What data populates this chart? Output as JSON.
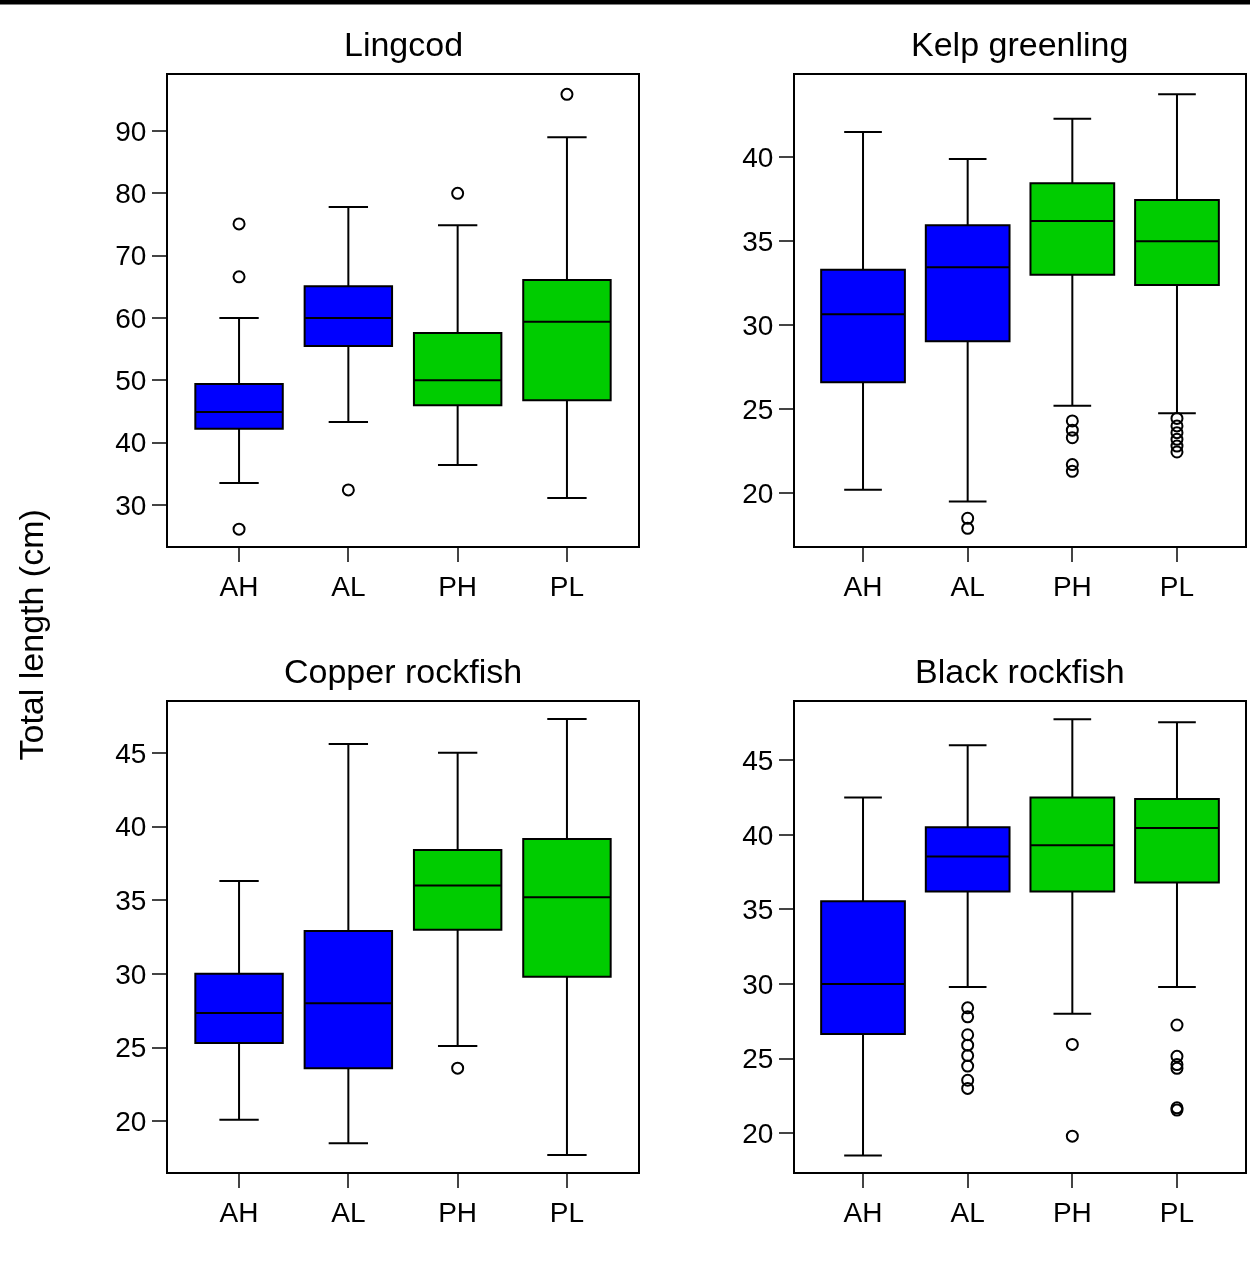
{
  "chart_data": [
    {
      "type": "box",
      "title": "Lingcod",
      "ylabel": "Total length (cm)",
      "categories": [
        "AH",
        "AL",
        "PH",
        "PL"
      ],
      "colors": [
        "#0000ff",
        "#0000ff",
        "#00cc00",
        "#00cc00"
      ],
      "ylim": [
        23.4,
        99.0
      ],
      "yticks": [
        30,
        40,
        50,
        60,
        70,
        80,
        90
      ],
      "boxes": [
        {
          "low": 33.5,
          "q1": 42.2,
          "median": 44.9,
          "q3": 49.4,
          "high": 60,
          "outliers": [
            75.1,
            66.6,
            26.1
          ]
        },
        {
          "low": 43.3,
          "q1": 55.5,
          "median": 60,
          "q3": 65.1,
          "high": 77.8,
          "outliers": [
            32.4
          ]
        },
        {
          "low": 36.4,
          "q1": 46,
          "median": 50,
          "q3": 57.6,
          "high": 74.9,
          "outliers": [
            80
          ]
        },
        {
          "low": 31.1,
          "q1": 46.8,
          "median": 59.4,
          "q3": 66.1,
          "high": 89,
          "outliers": [
            95.9
          ]
        }
      ]
    },
    {
      "type": "box",
      "title": "Kelp greenling",
      "categories": [
        "AH",
        "AL",
        "PH",
        "PL"
      ],
      "colors": [
        "#0000ff",
        "#0000ff",
        "#00cc00",
        "#00cc00"
      ],
      "ylim": [
        16.85,
        44.9
      ],
      "yticks": [
        20,
        25,
        30,
        35,
        40
      ],
      "boxes": [
        {
          "low": 20.2,
          "q1": 26.6,
          "median": 30.65,
          "q3": 33.3,
          "high": 41.5
        },
        {
          "low": 19.5,
          "q1": 29.05,
          "median": 33.45,
          "q3": 35.95,
          "high": 39.9,
          "outliers": [
            18.5,
            17.9
          ]
        },
        {
          "low": 25.2,
          "q1": 33.0,
          "median": 36.2,
          "q3": 38.45,
          "high": 42.3,
          "outliers": [
            24.3,
            23.75,
            23.3,
            21.7,
            21.3
          ]
        },
        {
          "low": 24.75,
          "q1": 32.4,
          "median": 35.0,
          "q3": 37.45,
          "high": 43.75,
          "outliers": [
            24.45,
            24.0,
            23.6,
            23.2,
            22.8,
            22.45
          ]
        }
      ]
    },
    {
      "type": "box",
      "title": "Copper rockfish",
      "categories": [
        "AH",
        "AL",
        "PH",
        "PL"
      ],
      "colors": [
        "#0000ff",
        "#0000ff",
        "#00cc00",
        "#00cc00"
      ],
      "ylim": [
        16.55,
        48.45
      ],
      "yticks": [
        20,
        25,
        30,
        35,
        40,
        45
      ],
      "boxes": [
        {
          "low": 20.1,
          "q1": 25.3,
          "median": 27.35,
          "q3": 30.0,
          "high": 36.3
        },
        {
          "low": 18.5,
          "q1": 23.6,
          "median": 28.0,
          "q3": 32.9,
          "high": 45.6
        },
        {
          "low": 25.1,
          "q1": 33.0,
          "median": 36.0,
          "q3": 38.4,
          "high": 45,
          "outliers": [
            23.6
          ]
        },
        {
          "low": 17.7,
          "q1": 29.8,
          "median": 35.2,
          "q3": 39.15,
          "high": 47.3
        }
      ]
    },
    {
      "type": "box",
      "title": "Black rockfish",
      "categories": [
        "AH",
        "AL",
        "PH",
        "PL"
      ],
      "colors": [
        "#0000ff",
        "#0000ff",
        "#00cc00",
        "#00cc00"
      ],
      "ylim": [
        17.4,
        48.9
      ],
      "yticks": [
        20,
        25,
        30,
        35,
        40,
        45
      ],
      "boxes": [
        {
          "low": 18.5,
          "q1": 26.65,
          "median": 30.0,
          "q3": 35.55,
          "high": 42.5
        },
        {
          "low": 29.8,
          "q1": 36.2,
          "median": 38.55,
          "q3": 40.5,
          "high": 46.0,
          "outliers": [
            28.4,
            27.8,
            26.6,
            25.9,
            25.2,
            24.5,
            23.55,
            23.0
          ]
        },
        {
          "low": 28.0,
          "q1": 36.2,
          "median": 39.3,
          "q3": 42.5,
          "high": 47.75,
          "outliers": [
            25.95,
            19.8
          ]
        },
        {
          "low": 29.8,
          "q1": 36.8,
          "median": 40.45,
          "q3": 42.4,
          "high": 47.55,
          "outliers": [
            27.25,
            25.15,
            24.6,
            24.35,
            21.7,
            21.55
          ]
        }
      ]
    }
  ]
}
